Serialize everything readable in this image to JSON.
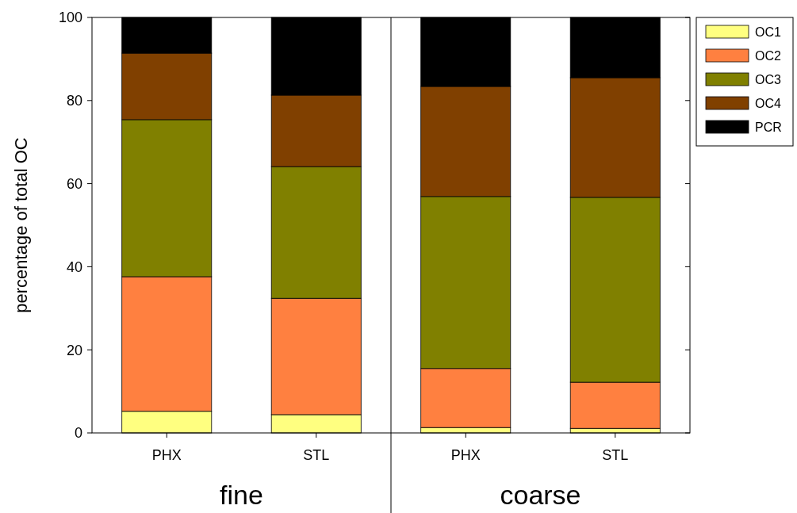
{
  "chart_data": {
    "type": "bar",
    "stacked": true,
    "ylabel": "percentage of total OC",
    "categories": [
      "PHX",
      "STL",
      "PHX",
      "STL"
    ],
    "annotations": [
      "fine",
      "coarse"
    ],
    "series": [
      {
        "name": "OC1",
        "color": "#ffff80",
        "values": [
          5.2,
          4.4,
          1.3,
          1.1
        ]
      },
      {
        "name": "OC2",
        "color": "#ff8040",
        "values": [
          32.4,
          28.0,
          14.2,
          11.1
        ]
      },
      {
        "name": "OC3",
        "color": "#808000",
        "values": [
          37.8,
          31.7,
          41.4,
          44.5
        ]
      },
      {
        "name": "OC4",
        "color": "#804000",
        "values": [
          16.0,
          17.2,
          26.5,
          28.8
        ]
      },
      {
        "name": "PCR",
        "color": "#000000",
        "values": [
          8.6,
          18.7,
          16.6,
          14.5
        ]
      }
    ],
    "ylim": [
      0,
      100
    ],
    "yticks": [
      0,
      20,
      40,
      60,
      80,
      100
    ],
    "grid": false,
    "legend": "top right"
  }
}
